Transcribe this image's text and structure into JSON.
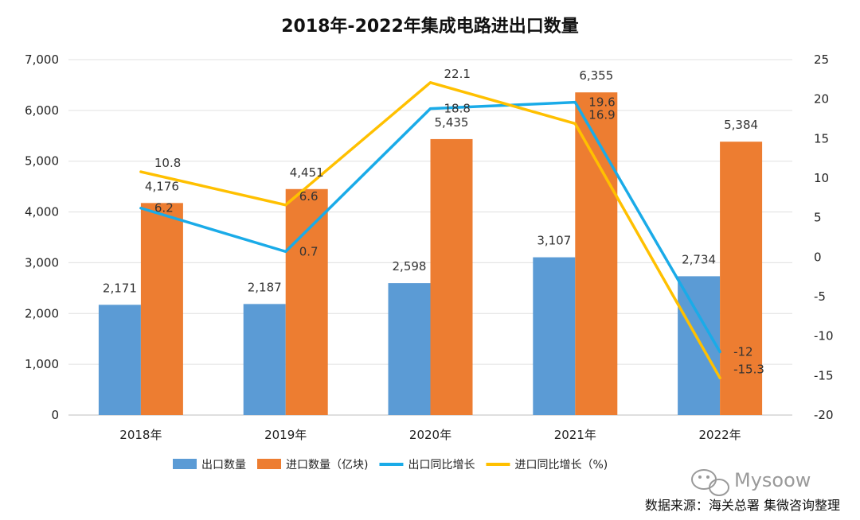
{
  "chart_data": {
    "type": "bar",
    "title": "2018年-2022年集成电路进出口数量",
    "categories": [
      "2018年",
      "2019年",
      "2020年",
      "2021年",
      "2022年"
    ],
    "series": [
      {
        "name": "出口数量",
        "kind": "bar",
        "axis": "left",
        "color": "#5B9BD5",
        "values": [
          2171,
          2187,
          2598,
          3107,
          2734
        ],
        "labels": [
          "2,171",
          "2,187",
          "2,598",
          "3,107",
          "2,734"
        ]
      },
      {
        "name": "进口数量（亿块)",
        "kind": "bar",
        "axis": "left",
        "color": "#ED7D31",
        "values": [
          4176,
          4451,
          5435,
          6355,
          5384
        ],
        "labels": [
          "4,176",
          "4,451",
          "5,435",
          "6,355",
          "5,384"
        ]
      },
      {
        "name": "出口同比增长",
        "kind": "line",
        "axis": "right",
        "color": "#1AABE8",
        "values": [
          6.2,
          0.7,
          18.8,
          19.6,
          -12
        ],
        "labels": [
          "6.2",
          "0.7",
          "18.8",
          "19.6",
          "-12"
        ]
      },
      {
        "name": "进口同比增长（%)",
        "kind": "line",
        "axis": "right",
        "color": "#FFC000",
        "values": [
          10.8,
          6.6,
          22.1,
          16.9,
          -15.3
        ],
        "labels": [
          "10.8",
          "6.6",
          "22.1",
          "16.9",
          "-15.3"
        ]
      }
    ],
    "y_left": {
      "range": [
        0,
        7000
      ],
      "ticks": [
        "0",
        "1,000",
        "2,000",
        "3,000",
        "4,000",
        "5,000",
        "6,000",
        "7,000"
      ]
    },
    "y_right": {
      "range": [
        -20,
        25
      ],
      "ticks": [
        "-20",
        "-15",
        "-10",
        "-5",
        "0",
        "5",
        "10",
        "15",
        "20",
        "25"
      ]
    },
    "grid": true,
    "legend_position": "bottom"
  },
  "watermark": {
    "text": "Mysoow"
  },
  "source": "数据来源：海关总署  集微咨询整理"
}
